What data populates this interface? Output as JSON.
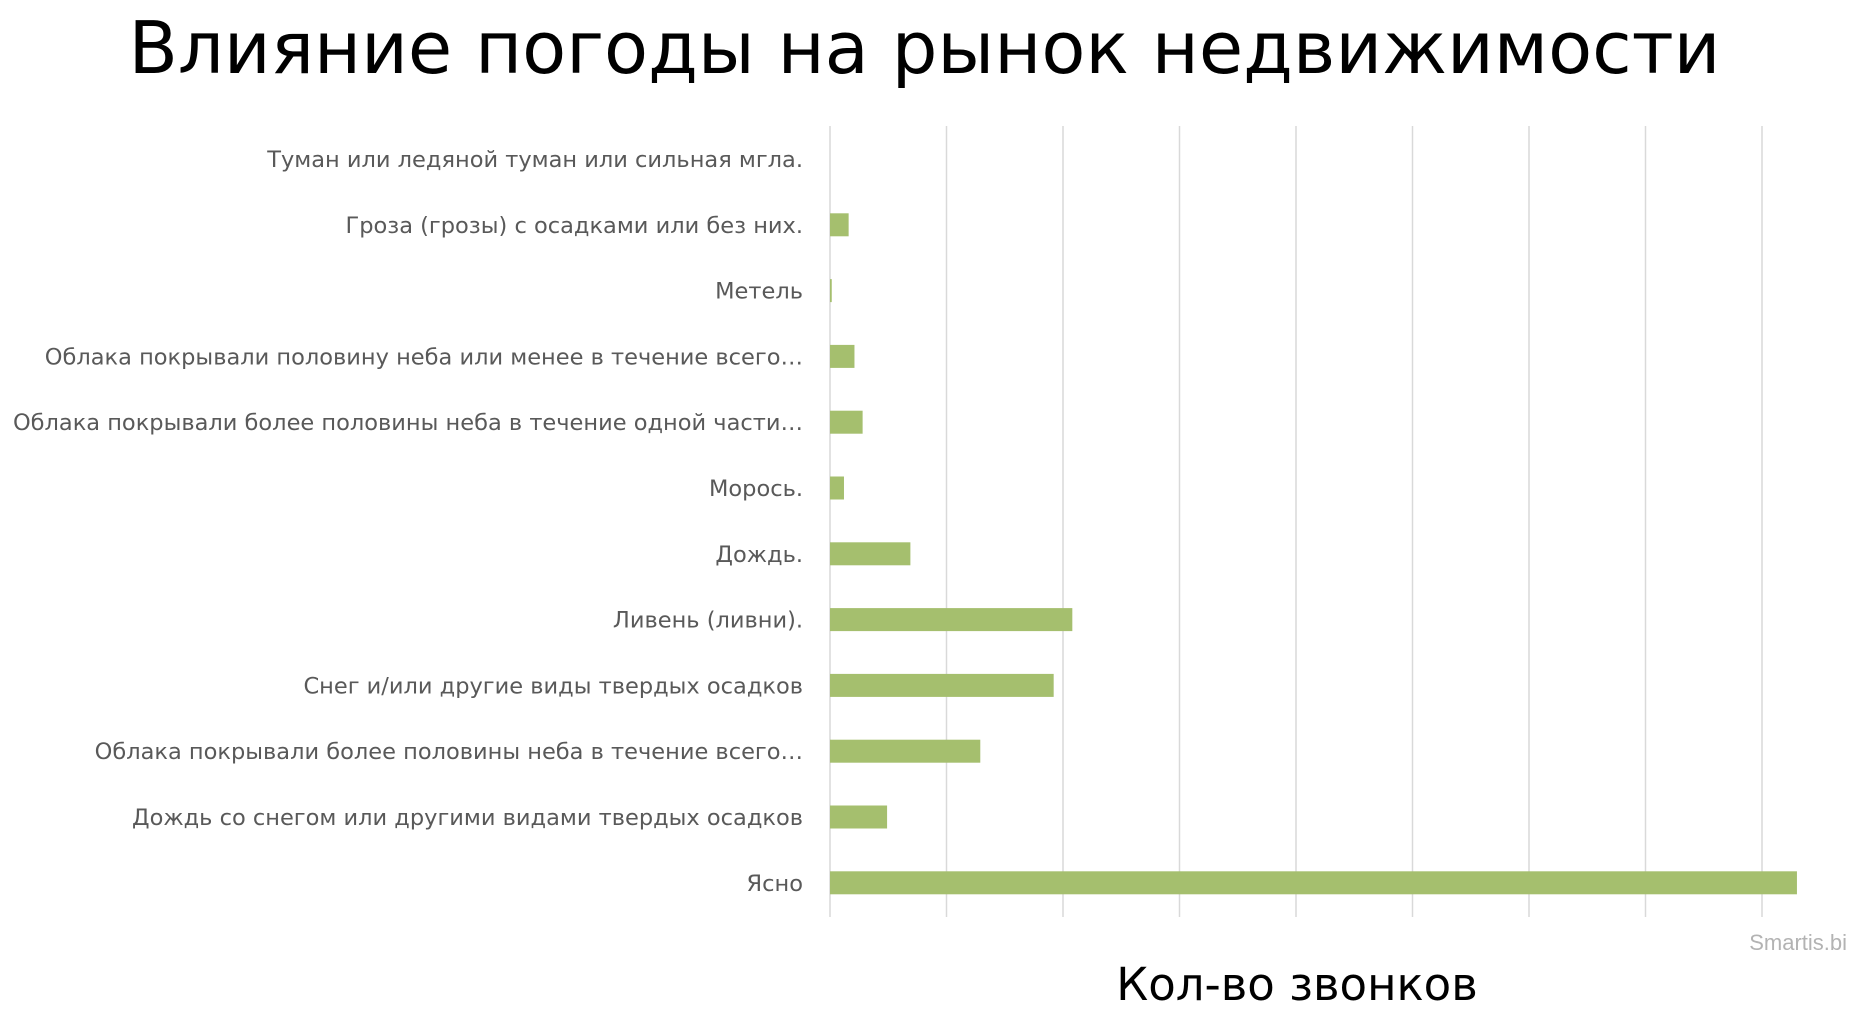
{
  "chart_data": {
    "type": "bar",
    "orientation": "horizontal",
    "title": "Влияние погоды на рынок недвижимости",
    "xlabel": "Кол-во звонков",
    "ylabel": "",
    "categories": [
      "Туман или ледяной туман или сильная мгла.",
      "Гроза (грозы) с осадками или без них.",
      "Метель",
      "Облака покрывали половину неба или менее в течение всего…",
      "Облака покрывали более половины неба в течение одной части…",
      "Морось.",
      "Дождь.",
      "Ливень (ливни).",
      "Снег и/или другие виды твердых осадков",
      "Облака покрывали более половины неба в течение всего…",
      "Дождь со снегом или другими видами твердых осадков",
      "Ясно"
    ],
    "values": [
      0,
      1.6,
      0.15,
      2.1,
      2.8,
      1.2,
      6.9,
      20.8,
      19.2,
      12.9,
      4.9,
      83
    ],
    "xlim": [
      0,
      88
    ],
    "x_gridline_step": 10,
    "x_tick_labels_shown": false,
    "grid": true,
    "legend": "none",
    "colors": {
      "bar": "#a5bf6e",
      "grid": "#d9d9d9",
      "label": "#595959",
      "watermark": "#b3b3b3"
    }
  },
  "watermark": "Smartis.bi"
}
